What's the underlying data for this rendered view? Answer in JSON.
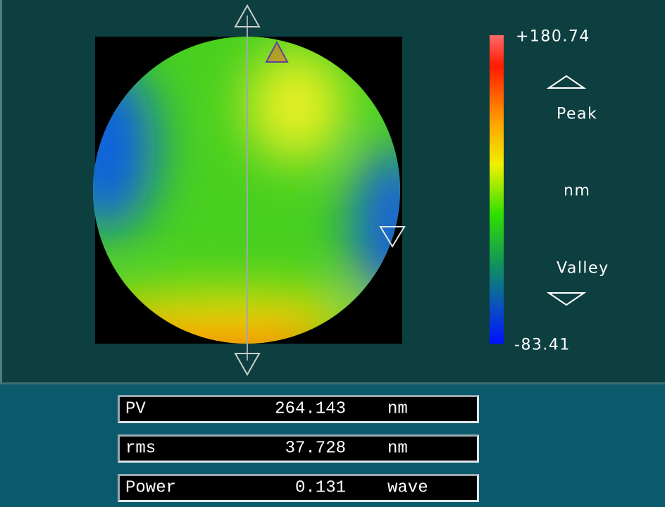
{
  "colorbar": {
    "max_label": "+180.74",
    "peak_label": "Peak",
    "unit": "nm",
    "valley_label": "Valley",
    "min_label": "-83.41"
  },
  "results": {
    "rows": [
      [
        "PV",
        "264.143",
        "nm"
      ],
      [
        "rms",
        "37.728",
        "nm"
      ],
      [
        "Power",
        "0.131",
        "wave"
      ]
    ]
  }
}
